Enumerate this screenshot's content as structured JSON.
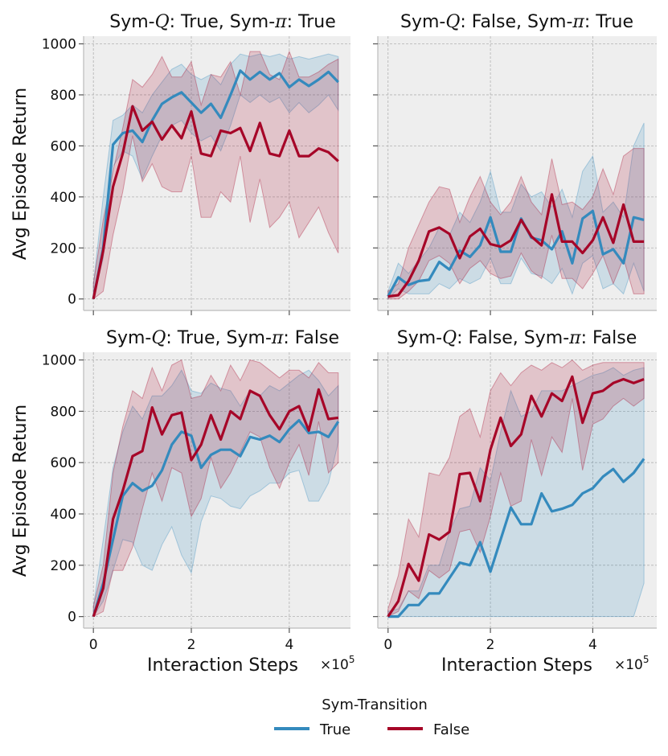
{
  "figure": {
    "y_label": "Avg Episode Return",
    "x_label": "Interaction Steps",
    "x_multiplier": "×10",
    "x_exponent": "5"
  },
  "colors": {
    "true": "#348abd",
    "false": "#a60628",
    "panel_bg": "#eeeeee",
    "grid": "#b2b2b2"
  },
  "legend": {
    "title": "Sym-Transition",
    "entries": [
      {
        "label": "True",
        "color": "#348abd"
      },
      {
        "label": "False",
        "color": "#a60628"
      }
    ]
  },
  "chart_data": [
    {
      "type": "line",
      "title": {
        "pre": "Sym-",
        "q": "Q",
        "mid": ": True, Sym-",
        "pi": "π",
        "post": ": True"
      },
      "xlabel": "Interaction Steps",
      "ylabel": "Avg Episode Return",
      "xlim": [
        -0.2,
        5.25
      ],
      "ylim": [
        -45,
        1030
      ],
      "xticks": [
        0,
        2,
        4
      ],
      "yticks": [
        0,
        200,
        400,
        600,
        800,
        1000
      ],
      "x": [
        0,
        0.2,
        0.4,
        0.6,
        0.8,
        1.0,
        1.2,
        1.4,
        1.6,
        1.8,
        2.0,
        2.2,
        2.4,
        2.6,
        2.8,
        3.0,
        3.2,
        3.4,
        3.6,
        3.8,
        4.0,
        4.2,
        4.4,
        4.6,
        4.8,
        5.0
      ],
      "series": [
        {
          "name": "True",
          "values": [
            0,
            200,
            605,
            650,
            660,
            615,
            700,
            765,
            790,
            810,
            770,
            730,
            765,
            710,
            800,
            895,
            860,
            890,
            860,
            885,
            830,
            860,
            835,
            860,
            890,
            850
          ],
          "lower": [
            0,
            160,
            520,
            580,
            560,
            470,
            560,
            640,
            680,
            700,
            650,
            620,
            640,
            580,
            680,
            800,
            770,
            800,
            770,
            790,
            730,
            770,
            730,
            760,
            800,
            740
          ],
          "upper": [
            60,
            400,
            700,
            720,
            760,
            730,
            800,
            850,
            900,
            920,
            880,
            860,
            880,
            840,
            920,
            960,
            950,
            960,
            950,
            960,
            940,
            950,
            940,
            950,
            960,
            950
          ]
        },
        {
          "name": "False",
          "values": [
            0,
            190,
            440,
            570,
            755,
            660,
            695,
            625,
            680,
            630,
            735,
            570,
            560,
            660,
            650,
            670,
            580,
            690,
            570,
            560,
            660,
            560,
            560,
            590,
            575,
            540
          ],
          "lower": [
            0,
            30,
            250,
            420,
            640,
            460,
            530,
            440,
            420,
            420,
            560,
            320,
            320,
            420,
            380,
            560,
            300,
            470,
            280,
            320,
            380,
            240,
            300,
            360,
            260,
            180
          ],
          "upper": [
            60,
            310,
            500,
            670,
            860,
            830,
            880,
            950,
            870,
            870,
            930,
            760,
            880,
            870,
            930,
            800,
            970,
            970,
            880,
            860,
            970,
            870,
            870,
            890,
            920,
            940
          ]
        }
      ]
    },
    {
      "type": "line",
      "title": {
        "pre": "Sym-",
        "q": "Q",
        "mid": ": False, Sym-",
        "pi": "π",
        "post": ": True"
      },
      "xlabel": "Interaction Steps",
      "ylabel": "",
      "xlim": [
        -0.2,
        5.25
      ],
      "ylim": [
        -45,
        1030
      ],
      "xticks": [
        0,
        2,
        4
      ],
      "yticks": [
        0,
        200,
        400,
        600,
        800,
        1000
      ],
      "x": [
        0,
        0.2,
        0.4,
        0.6,
        0.8,
        1.0,
        1.2,
        1.4,
        1.6,
        1.8,
        2.0,
        2.2,
        2.4,
        2.6,
        2.8,
        3.0,
        3.2,
        3.4,
        3.6,
        3.8,
        4.0,
        4.2,
        4.4,
        4.6,
        4.8,
        5.0
      ],
      "series": [
        {
          "name": "True",
          "values": [
            10,
            85,
            55,
            70,
            75,
            145,
            115,
            190,
            165,
            210,
            320,
            185,
            185,
            315,
            240,
            230,
            195,
            265,
            140,
            315,
            345,
            175,
            195,
            140,
            320,
            310
          ],
          "lower": [
            0,
            40,
            20,
            20,
            20,
            60,
            40,
            80,
            60,
            80,
            160,
            60,
            60,
            160,
            100,
            90,
            60,
            120,
            20,
            140,
            170,
            40,
            60,
            20,
            140,
            30
          ],
          "upper": [
            30,
            140,
            100,
            150,
            200,
            280,
            250,
            340,
            300,
            380,
            500,
            340,
            340,
            450,
            400,
            420,
            360,
            430,
            320,
            500,
            560,
            340,
            380,
            320,
            600,
            690
          ]
        },
        {
          "name": "False",
          "values": [
            10,
            15,
            70,
            150,
            265,
            280,
            255,
            160,
            245,
            275,
            215,
            205,
            230,
            310,
            245,
            210,
            410,
            225,
            225,
            180,
            230,
            320,
            220,
            370,
            225,
            225
          ],
          "lower": [
            0,
            0,
            30,
            70,
            150,
            170,
            140,
            60,
            120,
            150,
            100,
            80,
            90,
            180,
            110,
            80,
            250,
            80,
            80,
            40,
            100,
            170,
            60,
            160,
            20,
            20
          ],
          "upper": [
            30,
            60,
            200,
            290,
            380,
            440,
            430,
            300,
            400,
            480,
            380,
            330,
            380,
            480,
            380,
            330,
            550,
            370,
            380,
            350,
            400,
            510,
            410,
            560,
            590,
            590
          ]
        }
      ]
    },
    {
      "type": "line",
      "title": {
        "pre": "Sym-",
        "q": "Q",
        "mid": ": True, Sym-",
        "pi": "π",
        "post": ": False"
      },
      "xlabel": "Interaction Steps",
      "ylabel": "Avg Episode Return",
      "xlim": [
        -0.2,
        5.25
      ],
      "ylim": [
        -45,
        1030
      ],
      "xticks": [
        0,
        2,
        4
      ],
      "yticks": [
        0,
        200,
        400,
        600,
        800,
        1000
      ],
      "x": [
        0,
        0.2,
        0.4,
        0.6,
        0.8,
        1.0,
        1.2,
        1.4,
        1.6,
        1.8,
        2.0,
        2.2,
        2.4,
        2.6,
        2.8,
        3.0,
        3.2,
        3.4,
        3.6,
        3.8,
        4.0,
        4.2,
        4.4,
        4.6,
        4.8,
        5.0
      ],
      "series": [
        {
          "name": "True",
          "values": [
            0,
            130,
            300,
            470,
            520,
            490,
            510,
            570,
            670,
            720,
            705,
            580,
            630,
            650,
            650,
            625,
            700,
            690,
            705,
            680,
            730,
            765,
            715,
            720,
            700,
            760
          ],
          "lower": [
            0,
            60,
            180,
            300,
            290,
            200,
            180,
            280,
            350,
            240,
            170,
            370,
            470,
            460,
            430,
            420,
            470,
            490,
            520,
            520,
            560,
            570,
            450,
            450,
            520,
            680
          ],
          "upper": [
            40,
            300,
            580,
            720,
            820,
            770,
            860,
            860,
            900,
            960,
            880,
            870,
            910,
            890,
            880,
            820,
            880,
            860,
            900,
            880,
            910,
            940,
            960,
            920,
            860,
            900
          ]
        },
        {
          "name": "False",
          "values": [
            0,
            110,
            380,
            490,
            625,
            645,
            815,
            710,
            785,
            795,
            610,
            670,
            785,
            690,
            800,
            770,
            880,
            860,
            785,
            730,
            800,
            820,
            725,
            885,
            770,
            775
          ],
          "lower": [
            0,
            20,
            180,
            180,
            270,
            420,
            560,
            450,
            580,
            560,
            390,
            460,
            620,
            500,
            560,
            640,
            720,
            700,
            580,
            500,
            600,
            670,
            550,
            760,
            560,
            600
          ],
          "upper": [
            40,
            200,
            560,
            740,
            880,
            850,
            970,
            880,
            980,
            1000,
            850,
            860,
            940,
            880,
            980,
            920,
            1000,
            990,
            960,
            930,
            960,
            960,
            930,
            990,
            950,
            950
          ]
        }
      ]
    },
    {
      "type": "line",
      "title": {
        "pre": "Sym-",
        "q": "Q",
        "mid": ": False, Sym-",
        "pi": "π",
        "post": ": False"
      },
      "xlabel": "Interaction Steps",
      "ylabel": "",
      "xlim": [
        -0.2,
        5.25
      ],
      "ylim": [
        -45,
        1030
      ],
      "xticks": [
        0,
        2,
        4
      ],
      "yticks": [
        0,
        200,
        400,
        600,
        800,
        1000
      ],
      "x": [
        0,
        0.2,
        0.4,
        0.6,
        0.8,
        1.0,
        1.2,
        1.4,
        1.6,
        1.8,
        2.0,
        2.2,
        2.4,
        2.6,
        2.8,
        3.0,
        3.2,
        3.4,
        3.6,
        3.8,
        4.0,
        4.2,
        4.4,
        4.6,
        4.8,
        5.0
      ],
      "series": [
        {
          "name": "True",
          "values": [
            0,
            0,
            45,
            45,
            90,
            90,
            150,
            210,
            200,
            290,
            175,
            300,
            425,
            360,
            360,
            480,
            410,
            420,
            435,
            480,
            500,
            545,
            575,
            525,
            560,
            615
          ],
          "lower": [
            0,
            0,
            0,
            0,
            0,
            0,
            0,
            0,
            0,
            0,
            0,
            0,
            0,
            0,
            0,
            0,
            0,
            0,
            0,
            0,
            0,
            0,
            0,
            0,
            0,
            130
          ],
          "upper": [
            20,
            30,
            100,
            100,
            200,
            200,
            330,
            420,
            430,
            580,
            530,
            720,
            880,
            780,
            800,
            880,
            880,
            880,
            900,
            920,
            940,
            950,
            970,
            940,
            960,
            970
          ]
        },
        {
          "name": "False",
          "values": [
            0,
            60,
            205,
            140,
            320,
            300,
            330,
            555,
            560,
            450,
            650,
            775,
            665,
            710,
            860,
            780,
            870,
            840,
            935,
            755,
            870,
            880,
            910,
            925,
            910,
            925
          ],
          "lower": [
            0,
            20,
            100,
            70,
            180,
            150,
            180,
            330,
            340,
            250,
            390,
            560,
            430,
            450,
            690,
            550,
            700,
            640,
            850,
            570,
            750,
            770,
            820,
            850,
            820,
            850
          ],
          "upper": [
            30,
            160,
            380,
            310,
            560,
            550,
            620,
            780,
            810,
            700,
            880,
            950,
            900,
            950,
            980,
            960,
            990,
            970,
            1000,
            960,
            980,
            990,
            990,
            990,
            990,
            990
          ]
        }
      ]
    }
  ]
}
